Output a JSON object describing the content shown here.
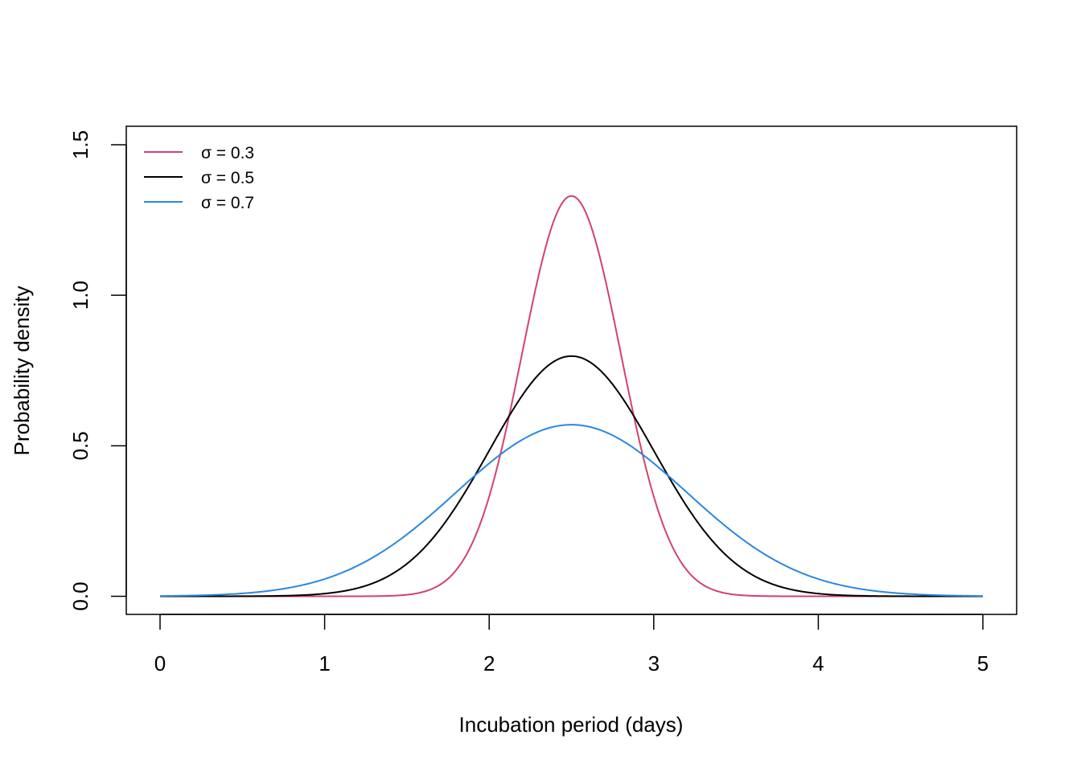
{
  "chart_data": {
    "type": "line",
    "title": "",
    "xlabel": "Incubation period (days)",
    "ylabel": "Probability density",
    "xlim": [
      0,
      5
    ],
    "ylim": [
      0,
      1.5
    ],
    "x_ticks": [
      "0",
      "1",
      "2",
      "3",
      "4",
      "5"
    ],
    "y_ticks": [
      "0.0",
      "0.5",
      "1.0",
      "1.5"
    ],
    "grid": false,
    "legend_position": "top-left",
    "distribution": "normal",
    "mean": 2.5,
    "series": [
      {
        "name": "σ = 0.3",
        "sigma": 0.3,
        "color": "#d1436a"
      },
      {
        "name": "σ = 0.5",
        "sigma": 0.5,
        "color": "#000000"
      },
      {
        "name": "σ = 0.7",
        "sigma": 0.7,
        "color": "#2b87e0"
      }
    ]
  }
}
